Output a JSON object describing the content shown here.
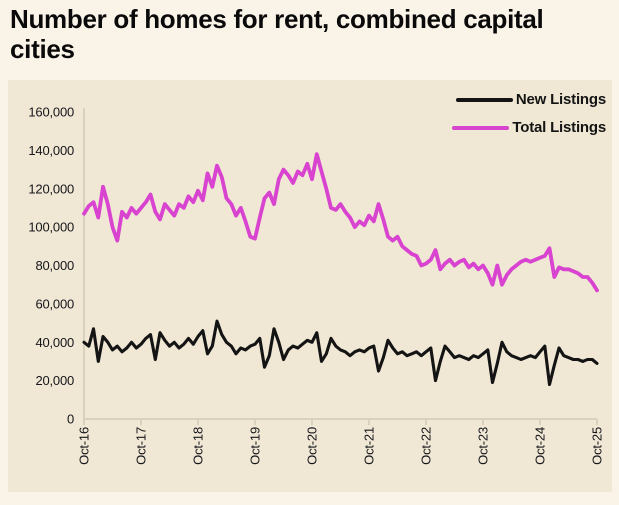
{
  "page": {
    "title": "Number of homes for rent, combined capital cities"
  },
  "chart_data": {
    "type": "line",
    "title": "Number of homes for rent, combined capital cities",
    "grid": false,
    "legend_position": "top-right",
    "axis_color": "#d9d1bd",
    "text_color": "#15151a",
    "x_tick_labels": [
      "Oct-16",
      "Oct-17",
      "Oct-18",
      "Oct-19",
      "Oct-20",
      "Oct-21",
      "Oct-22",
      "Oct-23",
      "Oct-24",
      "Oct-25"
    ],
    "months_per_tick": 12,
    "x_unit": "month",
    "ylim": [
      0,
      160000
    ],
    "y_tick_values": [
      0,
      20000,
      40000,
      60000,
      80000,
      100000,
      120000,
      140000,
      160000
    ],
    "y_tick_labels": [
      "0",
      "20,000",
      "40,000",
      "60,000",
      "80,000",
      "100,000",
      "120,000",
      "140,000",
      "160,000"
    ],
    "series": [
      {
        "name": "New Listings",
        "color": "#141414",
        "values": [
          40000,
          38000,
          47000,
          30000,
          43000,
          40000,
          36000,
          38000,
          35000,
          37000,
          40000,
          37000,
          39000,
          42000,
          44000,
          31000,
          45000,
          41000,
          38000,
          40000,
          37000,
          39000,
          42000,
          39000,
          43000,
          46000,
          34000,
          38000,
          51000,
          44000,
          40000,
          38000,
          34000,
          37000,
          36000,
          38000,
          39000,
          42000,
          27000,
          33000,
          47000,
          40000,
          31000,
          36000,
          38000,
          37000,
          39000,
          41000,
          40000,
          45000,
          30000,
          34000,
          42000,
          38000,
          36000,
          35000,
          33000,
          35000,
          36000,
          35000,
          37000,
          38000,
          25000,
          32000,
          41000,
          37000,
          34000,
          35000,
          33000,
          34000,
          35000,
          33000,
          35000,
          37000,
          20000,
          30000,
          38000,
          35000,
          32000,
          33000,
          32000,
          31000,
          33000,
          32000,
          34000,
          36000,
          19000,
          29000,
          40000,
          35000,
          33000,
          32000,
          31000,
          32000,
          33000,
          32000,
          35000,
          38000,
          18000,
          28000,
          37000,
          33000,
          32000,
          31000,
          31000,
          30000,
          31000,
          31000,
          29000
        ]
      },
      {
        "name": "Total Listings",
        "color": "#d843cf",
        "values": [
          107000,
          111000,
          113000,
          105000,
          121000,
          112000,
          100000,
          93000,
          108000,
          105000,
          110000,
          107000,
          110000,
          113000,
          117000,
          108000,
          104000,
          112000,
          109000,
          106000,
          112000,
          110000,
          116000,
          113000,
          119000,
          114000,
          128000,
          121000,
          132000,
          126000,
          115000,
          112000,
          106000,
          110000,
          103000,
          95000,
          94000,
          105000,
          115000,
          118000,
          112000,
          125000,
          130000,
          127000,
          123000,
          129000,
          127000,
          133000,
          125000,
          138000,
          129000,
          120000,
          110000,
          109000,
          112000,
          108000,
          105000,
          100000,
          103000,
          101000,
          106000,
          103000,
          112000,
          104000,
          95000,
          93000,
          95000,
          90000,
          88000,
          86000,
          85000,
          80000,
          81000,
          83000,
          88000,
          78000,
          81000,
          83000,
          80000,
          82000,
          83000,
          79000,
          81000,
          78000,
          80000,
          76000,
          70000,
          80000,
          70000,
          75000,
          78000,
          80000,
          82000,
          83000,
          82000,
          83000,
          84000,
          85000,
          89000,
          74000,
          79000,
          78000,
          78000,
          77000,
          76000,
          74000,
          74000,
          71000,
          67000
        ]
      }
    ]
  }
}
